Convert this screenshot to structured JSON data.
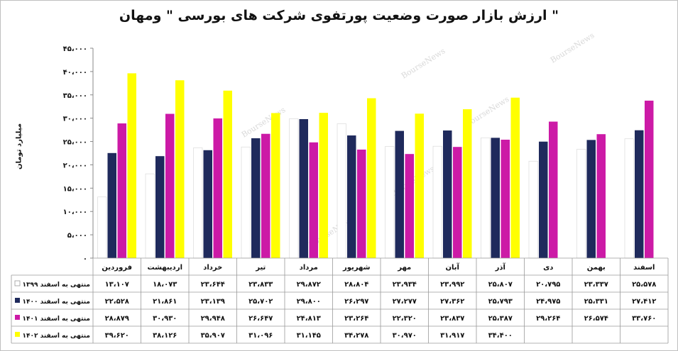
{
  "chart_data": {
    "type": "bar",
    "title": "ارزش بازار صورت وضعیت پورتفوی شرکت های بورسی \" ومهان \"",
    "ylabel": "میلیارد تومان",
    "ylim": [
      0,
      45000
    ],
    "y_ticks": [
      0,
      5000,
      10000,
      15000,
      20000,
      25000,
      30000,
      35000,
      40000,
      45000
    ],
    "y_tick_labels": [
      "۰",
      "۵،۰۰۰",
      "۱۰،۰۰۰",
      "۱۵،۰۰۰",
      "۲۰،۰۰۰",
      "۲۵،۰۰۰",
      "۳۰،۰۰۰",
      "۳۵،۰۰۰",
      "۴۰،۰۰۰",
      "۴۵،۰۰۰"
    ],
    "categories": [
      "فروردین",
      "اردیبهشت",
      "خرداد",
      "تیر",
      "مرداد",
      "شهریور",
      "مهر",
      "آبان",
      "آذر",
      "دی",
      "بهمن",
      "اسفند"
    ],
    "series": [
      {
        "name": "منتهی به اسفند ۱۳۹۹",
        "color": "#ffffff",
        "values": [
          13107,
          18073,
          23644,
          23833,
          29872,
          28804,
          23934,
          23992,
          25807,
          20795,
          23337,
          25578
        ],
        "labels": [
          "۱۳،۱۰۷",
          "۱۸،۰۷۳",
          "۲۳،۶۴۴",
          "۲۳،۸۳۳",
          "۲۹،۸۷۲",
          "۲۸،۸۰۴",
          "۲۳،۹۳۴",
          "۲۳،۹۹۲",
          "۲۵،۸۰۷",
          "۲۰،۷۹۵",
          "۲۳،۳۳۷",
          "۲۵،۵۷۸"
        ]
      },
      {
        "name": "منتهی به اسفند ۱۴۰۰",
        "color": "#1f2a5c",
        "values": [
          22528,
          21861,
          23139,
          25702,
          29800,
          26297,
          27277,
          27362,
          25793,
          24975,
          25331,
          27412
        ],
        "labels": [
          "۲۲،۵۲۸",
          "۲۱،۸۶۱",
          "۲۳،۱۳۹",
          "۲۵،۷۰۲",
          "۲۹،۸۰۰",
          "۲۶،۲۹۷",
          "۲۷،۲۷۷",
          "۲۷،۳۶۲",
          "۲۵،۷۹۳",
          "۲۴،۹۷۵",
          "۲۵،۳۳۱",
          "۲۷،۴۱۲"
        ]
      },
      {
        "name": "منتهی به اسفند ۱۴۰۱",
        "color": "#cc1aa6",
        "values": [
          28879,
          30930,
          29948,
          26647,
          24813,
          23264,
          22320,
          23837,
          25387,
          29264,
          26574,
          33760
        ],
        "labels": [
          "۲۸،۸۷۹",
          "۳۰،۹۳۰",
          "۲۹،۹۴۸",
          "۲۶،۶۴۷",
          "۲۴،۸۱۳",
          "۲۳،۲۶۴",
          "۲۲،۳۲۰",
          "۲۳،۸۳۷",
          "۲۵،۳۸۷",
          "۲۹،۲۶۴",
          "۲۶،۵۷۴",
          "۳۳،۷۶۰"
        ]
      },
      {
        "name": "منتهی به اسفند ۱۴۰۲",
        "color": "#ffff00",
        "values": [
          39620,
          38126,
          35907,
          31096,
          31145,
          34278,
          30970,
          31917,
          34400,
          null,
          null,
          null
        ],
        "labels": [
          "۳۹،۶۲۰",
          "۳۸،۱۲۶",
          "۳۵،۹۰۷",
          "۳۱،۰۹۶",
          "۳۱،۱۴۵",
          "۳۴،۲۷۸",
          "۳۰،۹۷۰",
          "۳۱،۹۱۷",
          "۳۴،۴۰۰",
          "",
          "",
          ""
        ]
      }
    ],
    "legend_placement": "data-table-left",
    "grid": false,
    "watermark": "BourseNews"
  }
}
